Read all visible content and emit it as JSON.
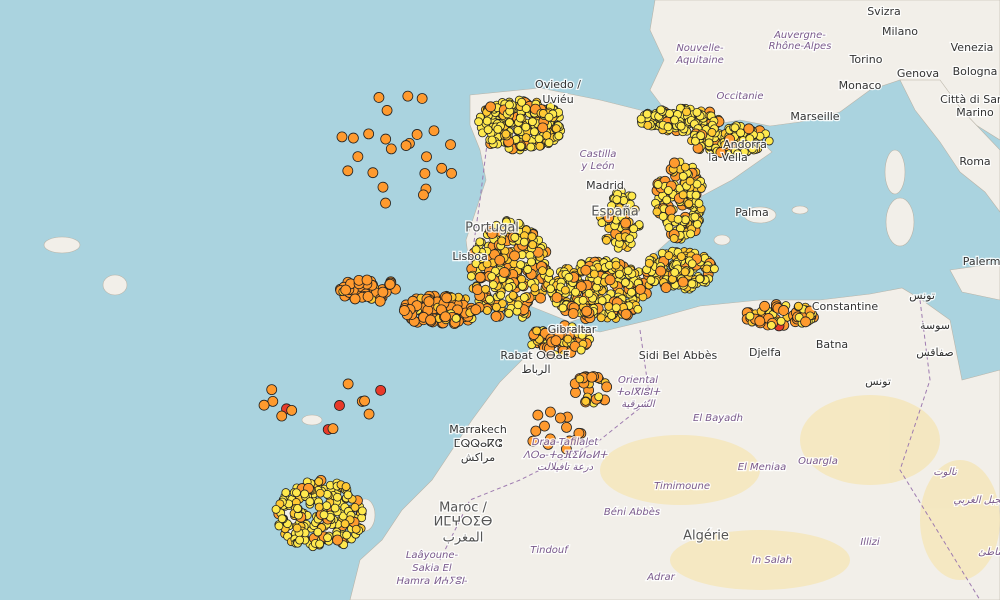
{
  "labels": [
    "Svizra",
    "Milano",
    "Venezia",
    "Nouvelle-",
    "Aquitaine",
    "Auvergne-",
    "Rhône-Alpes",
    "Torino",
    "Genova",
    "Bologna",
    "Monaco",
    "Città di San",
    "Marino",
    "Occitanie",
    "Marseille",
    "Roma",
    "Oviedo /",
    "Uviéu",
    "Andorra",
    "la Vella",
    "Castilla",
    "y León",
    "Madrid",
    "España",
    "Palma",
    "Portugal",
    "Lisboa",
    "Palermo",
    "Constantine",
    "تونس",
    "سوسة",
    "صفاقس",
    "Gibraltar",
    "Rabat ⵔⴱⴰⵟ",
    "الرباط",
    "Sidi Bel Abbès",
    "Djelfa",
    "Batna",
    "تونس",
    "Oriental",
    "ⵜⴰⵏⴳⵏⵓⵏⵜ",
    "الشرقية",
    "Marrakech",
    "ⵎⵕⵕⴰⴽⵛ",
    "مراكش",
    "Draa-Tafilalet",
    "ⴷⵔⴰ-ⵜⴰⴼⵉⵍⴰⵍⵜ",
    "درعة تافيلالت",
    "El Bayadh",
    "El Meniaa",
    "Ouargla",
    "Timimoune",
    "نالوت",
    "الجبل الغربي",
    "Maroc /",
    "ⵍⵎⵖⵔⵉⴱ",
    "المغرب",
    "Béni Abbès",
    "Algérie",
    "Illizi",
    "Tindouf",
    "In Salah",
    "Adrar",
    "الشاطئ",
    "Laâyoune-",
    "Sakia El",
    "Hamra ⵍⵄⵢⵓⵏ-"
  ]
}
